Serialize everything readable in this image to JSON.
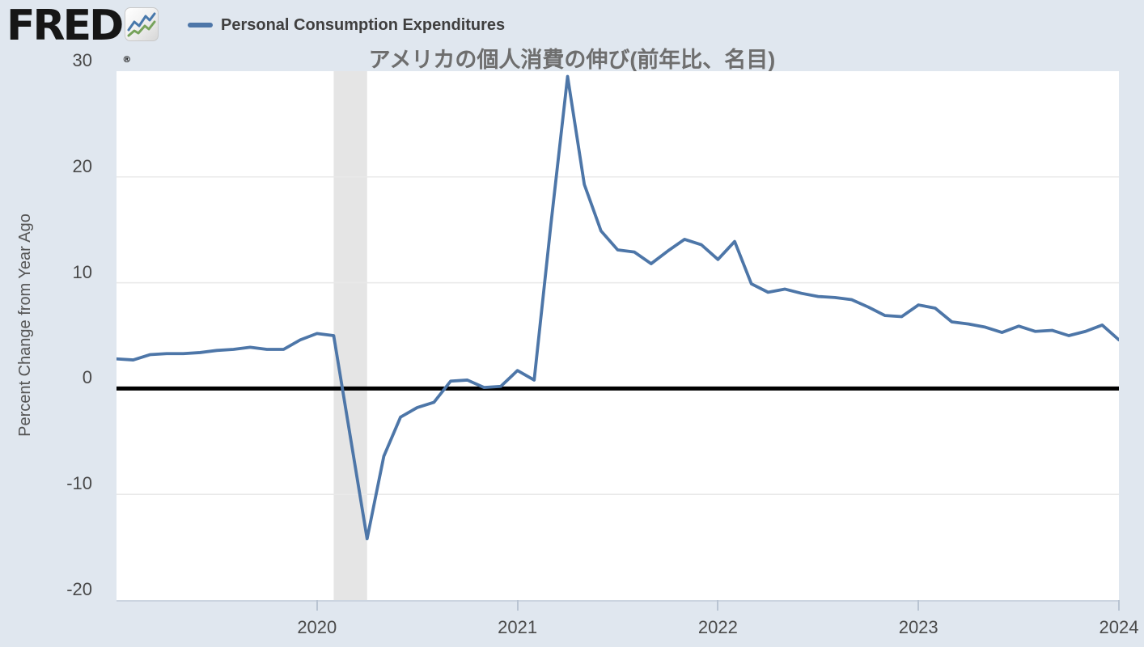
{
  "header": {
    "logo_text": "FRED",
    "registered_mark": "®",
    "legend": {
      "label": "Personal Consumption Expenditures"
    },
    "title": "アメリカの個人消費の伸び(前年比、名目)"
  },
  "y_axis": {
    "title": "Percent Change from Year Ago",
    "ticks": [
      30,
      20,
      10,
      0,
      -10,
      -20
    ]
  },
  "x_axis": {
    "ticks": [
      "2020",
      "2021",
      "2022",
      "2023",
      "2024"
    ]
  },
  "chart_data": {
    "type": "line",
    "series_name": "Personal Consumption Expenditures",
    "title": "アメリカの個人消費の伸び(前年比、名目)",
    "ylabel": "Percent Change from Year Ago",
    "frequency": "monthly",
    "start": "2019-01",
    "end": "2024-01",
    "ylim": [
      -20,
      30
    ],
    "grid": true,
    "gridline_values": [
      20,
      10,
      -10
    ],
    "values": [
      2.8,
      2.7,
      3.2,
      3.3,
      3.3,
      3.4,
      3.6,
      3.7,
      3.9,
      3.7,
      3.7,
      4.6,
      5.2,
      5.0,
      -4.6,
      -14.2,
      -6.4,
      -2.7,
      -1.8,
      -1.3,
      0.7,
      0.8,
      0.1,
      0.2,
      1.7,
      0.8,
      15.5,
      29.5,
      19.3,
      14.9,
      13.1,
      12.9,
      11.8,
      13.0,
      14.1,
      13.6,
      12.2,
      13.9,
      9.9,
      9.1,
      9.4,
      9.0,
      8.7,
      8.6,
      8.4,
      7.7,
      6.9,
      6.8,
      7.9,
      7.6,
      6.3,
      6.1,
      5.8,
      5.3,
      5.9,
      5.4,
      5.5,
      5.0,
      5.4,
      6.0,
      4.6
    ],
    "recession_band": {
      "start": "2020-02",
      "end": "2020-04"
    },
    "colors": {
      "line": "#4d76a8",
      "zero_line": "#000000",
      "recession_band": "#e5e5e5",
      "gridline": "#e9e9e9",
      "plot_background": "#ffffff",
      "page_background": "#e0e7ef",
      "logo_icon_line_blue": "#4878ab",
      "logo_icon_line_green": "#77a35b"
    }
  }
}
